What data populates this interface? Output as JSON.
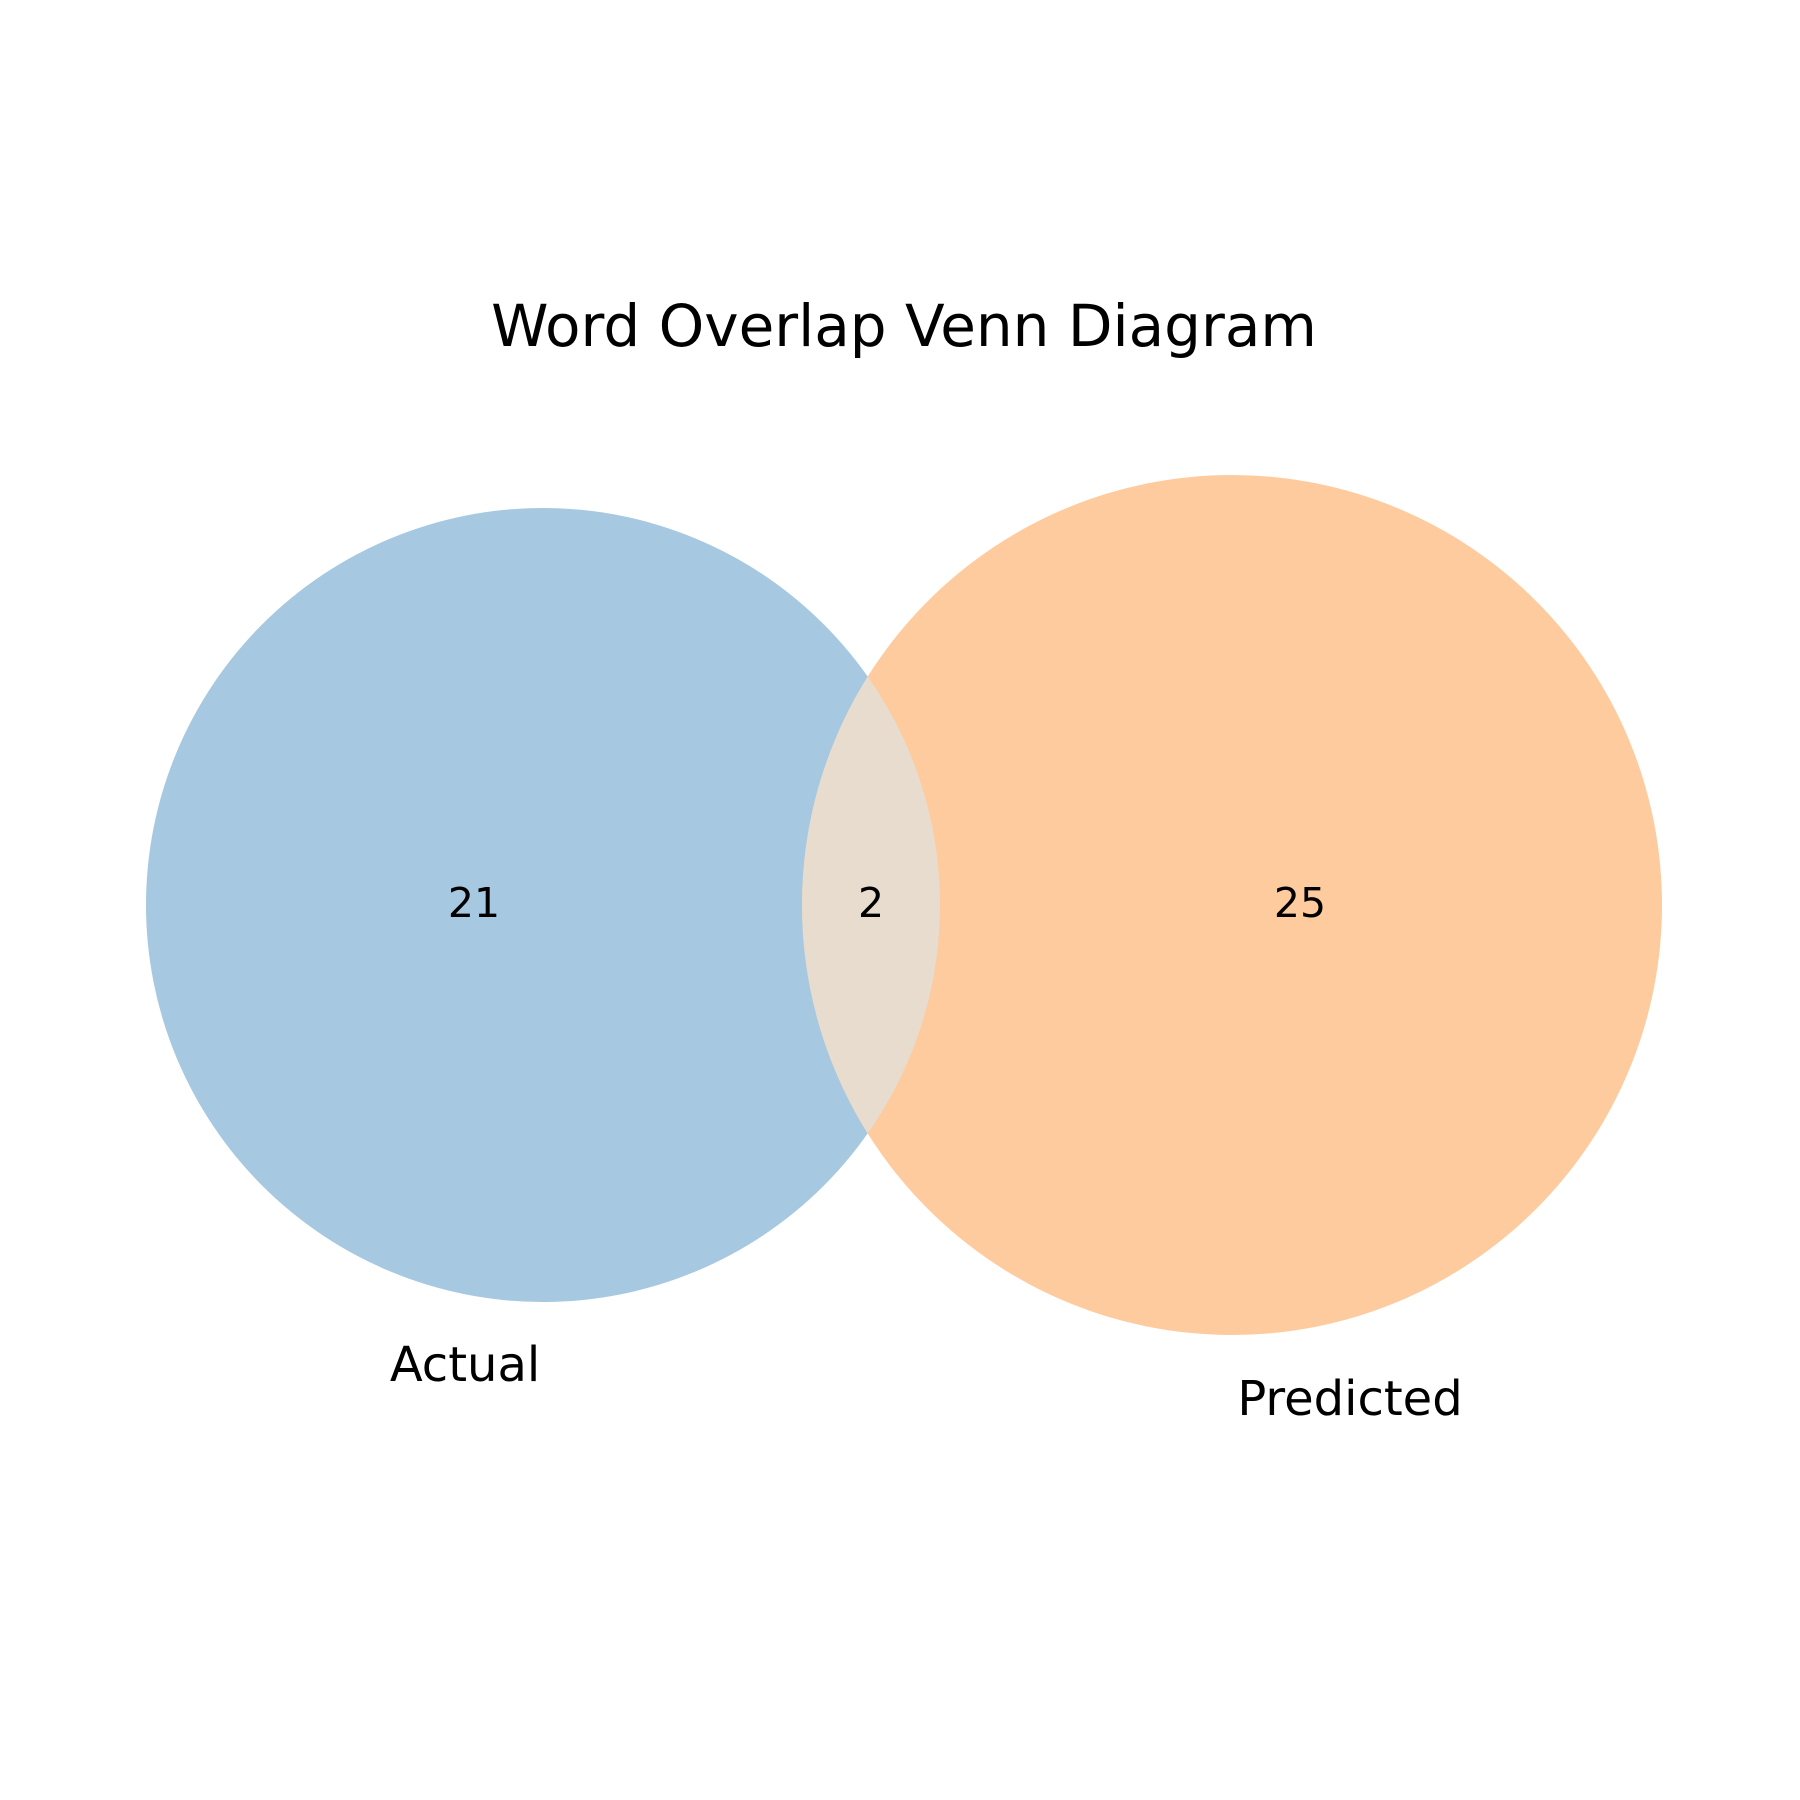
{
  "diagram": {
    "type": "venn2",
    "title": "Word Overlap Venn Diagram",
    "sets": [
      {
        "name": "Actual",
        "color": "#a6c8e0"
      },
      {
        "name": "Predicted",
        "color": "#fecb9e"
      }
    ],
    "regions": {
      "actual_only": "21",
      "overlap": "2",
      "predicted_only": "25"
    },
    "overlap_color": "#e8dccf"
  }
}
